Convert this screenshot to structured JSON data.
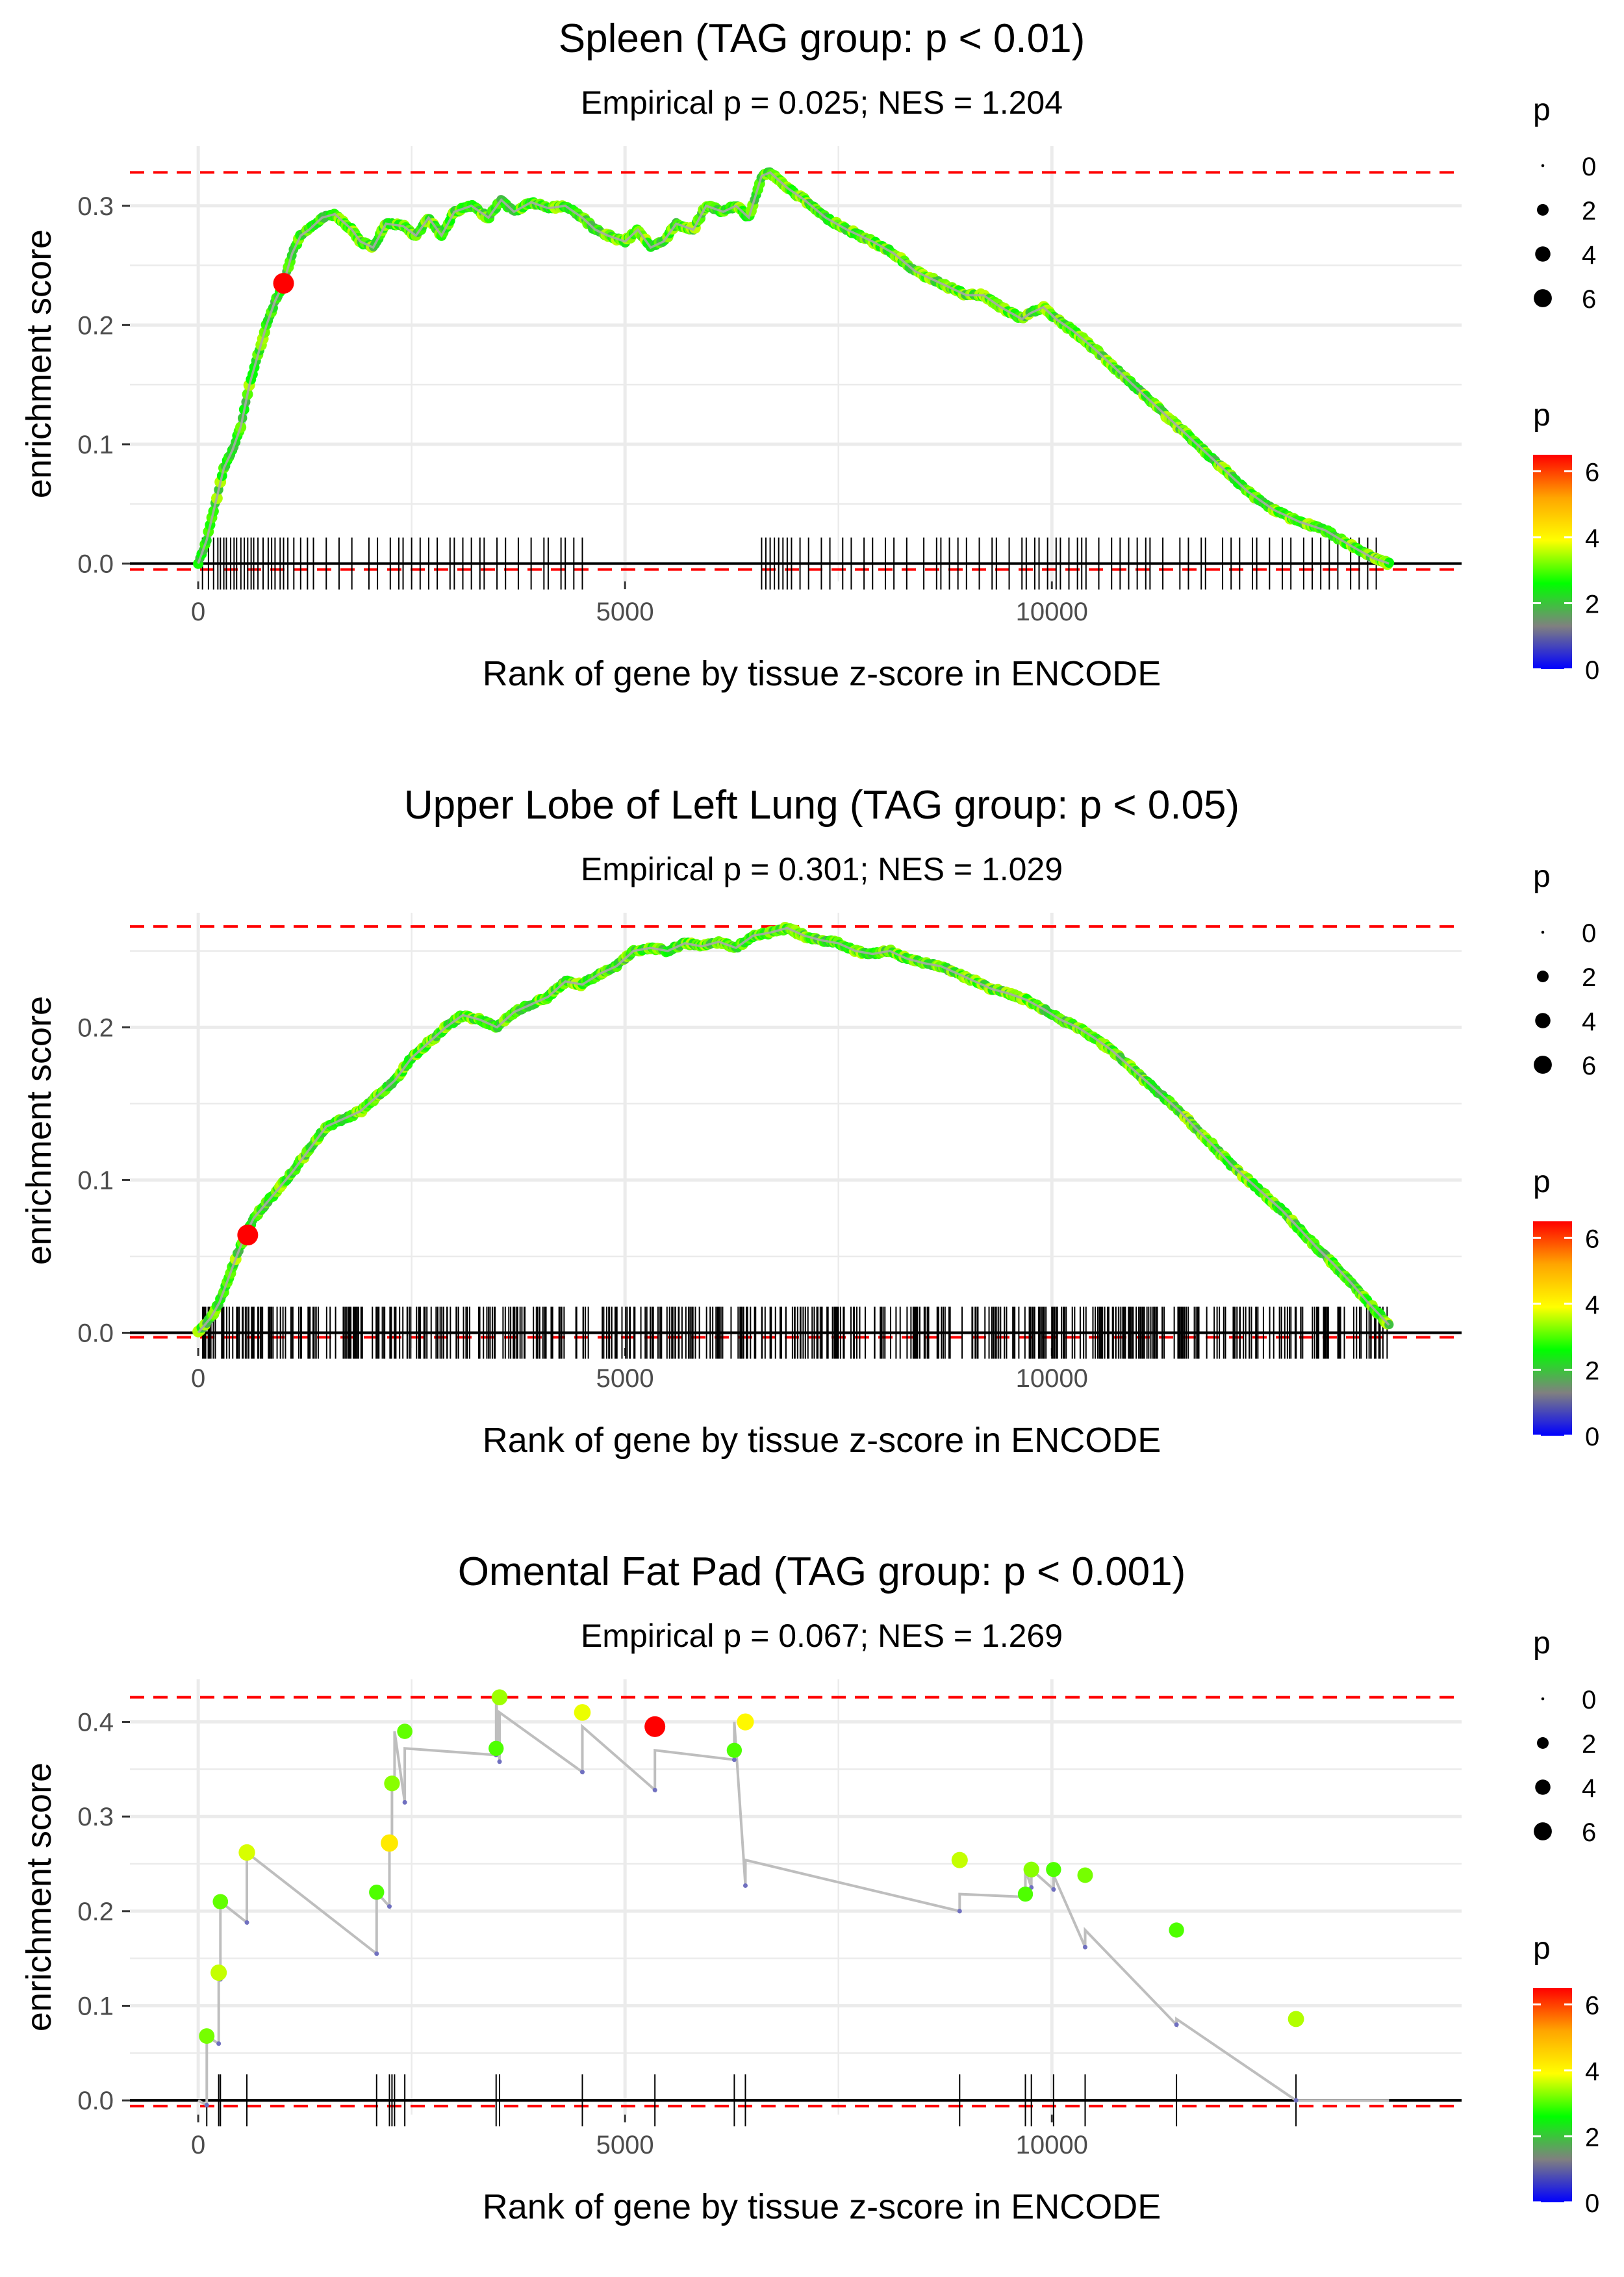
{
  "shared": {
    "xlabel": "Rank of gene by tissue z-score in ENCODE",
    "ylabel": "enrichment score",
    "size_legend_title": "p",
    "color_legend_title": "p",
    "size_legend_values": [
      "0",
      "2",
      "4",
      "6"
    ],
    "color_legend_ticks": [
      "6",
      "4",
      "2",
      "0"
    ],
    "colors": {
      "gradient": [
        "#0000ff",
        "#808080",
        "#00ff00",
        "#ffff00",
        "#ffa500",
        "#ff0000"
      ],
      "max_line": "#ff0000",
      "curve": "#bebebe",
      "grid": "#ebebeb"
    }
  },
  "chart_data": [
    {
      "type": "line",
      "title": "Spleen (TAG group: p < 0.01)",
      "subtitle": "Empirical p = 0.025; NES = 1.204",
      "xlim": [
        -800,
        14800
      ],
      "ylim": [
        -0.015,
        0.35
      ],
      "x_ticks": [
        0,
        5000,
        10000
      ],
      "x_tick_labels": [
        "0",
        "5000",
        "10000"
      ],
      "y_ticks": [
        0.0,
        0.1,
        0.2,
        0.3
      ],
      "y_tick_labels": [
        "0.0",
        "0.1",
        "0.2",
        "0.3"
      ],
      "max_lines": [
        0.328,
        -0.005
      ],
      "highlight": {
        "x": 1000,
        "y": 0.235,
        "p": 6.5
      },
      "curve": {
        "x": [
          0,
          100,
          200,
          300,
          400,
          500,
          600,
          700,
          800,
          900,
          1000,
          1100,
          1200,
          1300,
          1450,
          1600,
          1800,
          1900,
          2050,
          2200,
          2400,
          2550,
          2700,
          2850,
          3000,
          3200,
          3400,
          3550,
          3700,
          3900,
          4100,
          4300,
          4500,
          4650,
          4800,
          5000,
          5150,
          5300,
          5450,
          5600,
          5800,
          5950,
          6150,
          6300,
          6450,
          6600,
          6700,
          6900,
          7100,
          7350,
          7600,
          7900,
          8150,
          8400,
          8700,
          9000,
          9200,
          9400,
          9650,
          9750,
          9900,
          10050,
          10250,
          10500,
          10800,
          11100,
          11400,
          11700,
          12000,
          12300,
          12600,
          12900,
          13200,
          13500,
          13750,
          13950
        ],
        "y": [
          0.0,
          0.02,
          0.05,
          0.08,
          0.095,
          0.115,
          0.15,
          0.175,
          0.2,
          0.22,
          0.235,
          0.26,
          0.275,
          0.28,
          0.29,
          0.293,
          0.28,
          0.27,
          0.265,
          0.285,
          0.283,
          0.275,
          0.29,
          0.275,
          0.295,
          0.3,
          0.29,
          0.305,
          0.295,
          0.303,
          0.298,
          0.3,
          0.29,
          0.28,
          0.275,
          0.27,
          0.28,
          0.265,
          0.27,
          0.285,
          0.28,
          0.3,
          0.295,
          0.3,
          0.29,
          0.325,
          0.328,
          0.315,
          0.305,
          0.29,
          0.28,
          0.27,
          0.26,
          0.245,
          0.235,
          0.225,
          0.225,
          0.215,
          0.205,
          0.21,
          0.215,
          0.205,
          0.195,
          0.18,
          0.16,
          0.14,
          0.12,
          0.1,
          0.08,
          0.06,
          0.045,
          0.035,
          0.028,
          0.015,
          0.005,
          0.0
        ]
      },
      "gene_ranks": [
        50,
        120,
        180,
        230,
        260,
        300,
        330,
        380,
        420,
        450,
        500,
        540,
        580,
        620,
        650,
        700,
        760,
        820,
        860,
        900,
        960,
        1000,
        1050,
        1120,
        1200,
        1280,
        1350,
        1500,
        1650,
        1800,
        2000,
        2100,
        2250,
        2350,
        2400,
        2500,
        2600,
        2700,
        2800,
        2950,
        3000,
        3100,
        3200,
        3300,
        3350,
        3500,
        3600,
        3750,
        3900,
        4050,
        4100,
        4250,
        4300,
        4400,
        4500,
        6600,
        6650,
        6700,
        6750,
        6800,
        6850,
        6900,
        6950,
        7050,
        7150,
        7300,
        7400,
        7550,
        7650,
        7800,
        7900,
        8050,
        8150,
        8300,
        8500,
        8650,
        8700,
        8800,
        8900,
        9000,
        9150,
        9300,
        9350,
        9500,
        9650,
        9700,
        9800,
        9850,
        9950,
        10050,
        10100,
        10200,
        10300,
        10350,
        10400,
        10550,
        10700,
        10800,
        10900,
        11000,
        11100,
        11150,
        11300,
        11500,
        11600,
        11750,
        11800,
        12000,
        12100,
        12200,
        12350,
        12400,
        12550,
        12700,
        12800,
        12950,
        13050,
        13150,
        13250,
        13350,
        13500,
        13600,
        13700,
        13800
      ]
    },
    {
      "type": "line",
      "title": "Upper Lobe of Left Lung (TAG group: p < 0.05)",
      "subtitle": "Empirical p = 0.301; NES = 1.029",
      "xlim": [
        -800,
        14800
      ],
      "ylim": [
        -0.01,
        0.275
      ],
      "x_ticks": [
        0,
        5000,
        10000
      ],
      "x_tick_labels": [
        "0",
        "5000",
        "10000"
      ],
      "y_ticks": [
        0.0,
        0.1,
        0.2
      ],
      "y_tick_labels": [
        "0.0",
        "0.1",
        "0.2"
      ],
      "max_lines": [
        0.266,
        -0.003
      ],
      "highlight": {
        "x": 580,
        "y": 0.064,
        "p": 6.5
      },
      "curve": {
        "x": [
          0,
          150,
          250,
          350,
          450,
          550,
          650,
          800,
          950,
          1100,
          1300,
          1500,
          1700,
          1900,
          2100,
          2300,
          2500,
          2700,
          2900,
          3100,
          3300,
          3500,
          3700,
          3900,
          4100,
          4300,
          4500,
          4700,
          4900,
          5100,
          5300,
          5500,
          5700,
          5900,
          6100,
          6300,
          6500,
          6700,
          6900,
          7100,
          7300,
          7500,
          7700,
          7900,
          8100,
          8300,
          8500,
          8700,
          8900,
          9100,
          9300,
          9500,
          9700,
          9900,
          10100,
          10300,
          10500,
          10700,
          10900,
          11100,
          11300,
          11500,
          11700,
          11900,
          12100,
          12300,
          12500,
          12700,
          12900,
          13100,
          13300,
          13500,
          13700,
          13950
        ],
        "y": [
          0.0,
          0.01,
          0.02,
          0.035,
          0.05,
          0.064,
          0.075,
          0.085,
          0.095,
          0.105,
          0.12,
          0.135,
          0.14,
          0.145,
          0.155,
          0.165,
          0.18,
          0.19,
          0.2,
          0.208,
          0.205,
          0.2,
          0.21,
          0.215,
          0.22,
          0.23,
          0.228,
          0.235,
          0.24,
          0.25,
          0.252,
          0.25,
          0.255,
          0.253,
          0.256,
          0.252,
          0.26,
          0.262,
          0.265,
          0.26,
          0.257,
          0.255,
          0.25,
          0.248,
          0.25,
          0.245,
          0.242,
          0.24,
          0.235,
          0.23,
          0.225,
          0.222,
          0.218,
          0.212,
          0.205,
          0.2,
          0.193,
          0.185,
          0.175,
          0.165,
          0.155,
          0.145,
          0.133,
          0.122,
          0.11,
          0.1,
          0.09,
          0.08,
          0.068,
          0.056,
          0.045,
          0.033,
          0.02,
          0.005
        ]
      },
      "gene_ranks_generated": {
        "start": 50,
        "end": 13950,
        "count": 520
      }
    },
    {
      "type": "line",
      "title": "Omental Fat Pad (TAG group: p < 0.001)",
      "subtitle": "Empirical p = 0.067; NES = 1.269",
      "xlim": [
        -800,
        14800
      ],
      "ylim": [
        -0.015,
        0.445
      ],
      "x_ticks": [
        0,
        5000,
        10000
      ],
      "x_tick_labels": [
        "0",
        "5000",
        "10000"
      ],
      "y_ticks": [
        0.0,
        0.1,
        0.2,
        0.3,
        0.4
      ],
      "y_tick_labels": [
        "0.0",
        "0.1",
        "0.2",
        "0.3",
        "0.4"
      ],
      "max_lines": [
        0.426,
        -0.006
      ],
      "highlight": {
        "x": 5350,
        "y": 0.395,
        "p": 6.5
      },
      "curve": {
        "x": [
          0,
          100,
          100,
          240,
          240,
          260,
          260,
          570,
          570,
          2090,
          2090,
          2240,
          2240,
          2270,
          2270,
          2300,
          2300,
          2420,
          2420,
          3490,
          3490,
          3530,
          3530,
          4500,
          4500,
          5350,
          5350,
          6280,
          6280,
          6410,
          6410,
          8920,
          8920,
          9690,
          9690,
          9760,
          9760,
          10020,
          10020,
          10390,
          10390,
          11460,
          11460,
          12860,
          12860,
          13950
        ],
        "y": [
          0.0,
          -0.005,
          0.068,
          0.06,
          0.135,
          0.128,
          0.21,
          0.188,
          0.262,
          0.155,
          0.22,
          0.205,
          0.272,
          0.268,
          0.335,
          0.33,
          0.39,
          0.315,
          0.372,
          0.365,
          0.426,
          0.358,
          0.41,
          0.347,
          0.395,
          0.328,
          0.37,
          0.36,
          0.4,
          0.227,
          0.254,
          0.2,
          0.218,
          0.215,
          0.244,
          0.225,
          0.244,
          0.223,
          0.238,
          0.162,
          0.18,
          0.08,
          0.086,
          0.0,
          0.0,
          0.0
        ]
      },
      "points": [
        {
          "x": 100,
          "y": 0.068,
          "p": 3.2
        },
        {
          "x": 240,
          "y": 0.135,
          "p": 3.6
        },
        {
          "x": 260,
          "y": 0.21,
          "p": 3.1
        },
        {
          "x": 570,
          "y": 0.262,
          "p": 3.7
        },
        {
          "x": 2090,
          "y": 0.22,
          "p": 3.0
        },
        {
          "x": 2240,
          "y": 0.272,
          "p": 4.2
        },
        {
          "x": 2270,
          "y": 0.335,
          "p": 3.3
        },
        {
          "x": 2420,
          "y": 0.39,
          "p": 3.1
        },
        {
          "x": 3490,
          "y": 0.372,
          "p": 3.0
        },
        {
          "x": 3530,
          "y": 0.426,
          "p": 3.4
        },
        {
          "x": 4500,
          "y": 0.41,
          "p": 3.8
        },
        {
          "x": 6280,
          "y": 0.37,
          "p": 3.0
        },
        {
          "x": 6410,
          "y": 0.4,
          "p": 4.0
        },
        {
          "x": 8920,
          "y": 0.254,
          "p": 3.6
        },
        {
          "x": 9690,
          "y": 0.218,
          "p": 3.0
        },
        {
          "x": 9760,
          "y": 0.244,
          "p": 3.3
        },
        {
          "x": 10020,
          "y": 0.244,
          "p": 3.0
        },
        {
          "x": 10390,
          "y": 0.238,
          "p": 3.2
        },
        {
          "x": 11460,
          "y": 0.18,
          "p": 3.0
        },
        {
          "x": 12860,
          "y": 0.086,
          "p": 3.5
        }
      ],
      "gene_ranks": [
        100,
        240,
        260,
        570,
        2090,
        2240,
        2270,
        2300,
        2420,
        3490,
        3530,
        4500,
        5350,
        6280,
        6410,
        8920,
        9690,
        9760,
        10020,
        10390,
        11460,
        12860
      ]
    }
  ]
}
